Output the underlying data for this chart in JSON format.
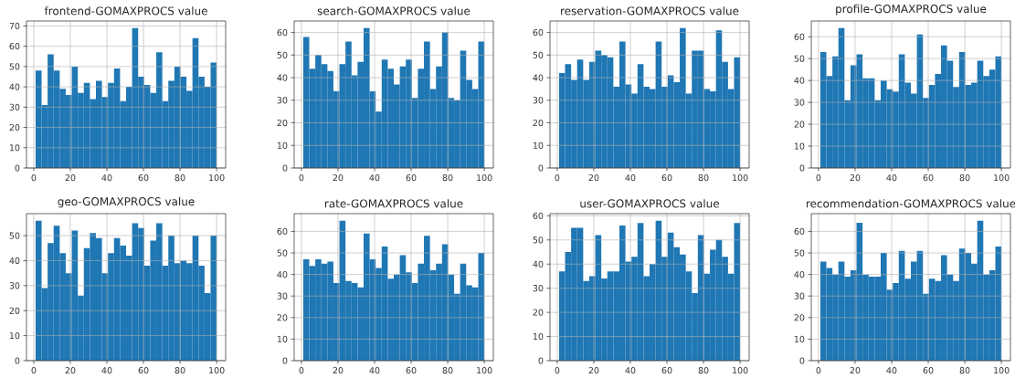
{
  "chart_data": [
    {
      "type": "histogram",
      "title": "frontend-GOMAXPROCS value",
      "color": "#1f77b4",
      "grid": true,
      "bins": [
        1,
        4.3,
        7.6,
        10.9,
        14.2,
        17.5,
        20.8,
        24.1,
        27.4,
        30.7,
        34,
        37.3,
        40.6,
        43.9,
        47.2,
        50.5,
        53.8,
        57.1,
        60.4,
        63.7,
        67,
        70.3,
        73.6,
        76.9,
        80.2,
        83.5,
        86.8,
        90.1,
        93.4,
        96.7,
        100
      ],
      "values": [
        48,
        31,
        56,
        48,
        39,
        36,
        50,
        37,
        42,
        34,
        43,
        35,
        42,
        49,
        33,
        40,
        69,
        45,
        41,
        37,
        57,
        33,
        43,
        50,
        45,
        38,
        64,
        45,
        40,
        52
      ],
      "xlim": [
        -3.95,
        104.95
      ],
      "ylim": [
        0,
        72.45
      ],
      "xticks": [
        0,
        20,
        40,
        60,
        80,
        100
      ],
      "yticks": [
        0,
        10,
        20,
        30,
        40,
        50,
        60,
        70
      ]
    },
    {
      "type": "histogram",
      "title": "search-GOMAXPROCS value",
      "color": "#1f77b4",
      "grid": true,
      "bins": [
        1,
        4.3,
        7.6,
        10.9,
        14.2,
        17.5,
        20.8,
        24.1,
        27.4,
        30.7,
        34,
        37.3,
        40.6,
        43.9,
        47.2,
        50.5,
        53.8,
        57.1,
        60.4,
        63.7,
        67,
        70.3,
        73.6,
        76.9,
        80.2,
        83.5,
        86.8,
        90.1,
        93.4,
        96.7,
        100
      ],
      "values": [
        58,
        44,
        50,
        46,
        43,
        34,
        46,
        56,
        41,
        47,
        62,
        34,
        25,
        48,
        44,
        37,
        45,
        48,
        31,
        44,
        56,
        35,
        45,
        60,
        31,
        30,
        52,
        39,
        35,
        56
      ],
      "xlim": [
        -3.95,
        104.95
      ],
      "ylim": [
        0,
        65.1
      ],
      "xticks": [
        0,
        20,
        40,
        60,
        80,
        100
      ],
      "yticks": [
        0,
        10,
        20,
        30,
        40,
        50,
        60
      ]
    },
    {
      "type": "histogram",
      "title": "reservation-GOMAXPROCS value",
      "color": "#1f77b4",
      "grid": true,
      "bins": [
        1,
        4.3,
        7.6,
        10.9,
        14.2,
        17.5,
        20.8,
        24.1,
        27.4,
        30.7,
        34,
        37.3,
        40.6,
        43.9,
        47.2,
        50.5,
        53.8,
        57.1,
        60.4,
        63.7,
        67,
        70.3,
        73.6,
        76.9,
        80.2,
        83.5,
        86.8,
        90.1,
        93.4,
        96.7,
        100
      ],
      "values": [
        42,
        46,
        39,
        48,
        39,
        47,
        52,
        50,
        49,
        36,
        56,
        37,
        33,
        46,
        36,
        35,
        56,
        36,
        41,
        38,
        62,
        33,
        52,
        52,
        35,
        34,
        61,
        47,
        35,
        49
      ],
      "xlim": [
        -3.95,
        104.95
      ],
      "ylim": [
        0,
        65.1
      ],
      "xticks": [
        0,
        20,
        40,
        60,
        80,
        100
      ],
      "yticks": [
        0,
        10,
        20,
        30,
        40,
        50,
        60
      ]
    },
    {
      "type": "histogram",
      "title": "profile-GOMAXPROCS value",
      "color": "#1f77b4",
      "grid": true,
      "bins": [
        1,
        4.3,
        7.6,
        10.9,
        14.2,
        17.5,
        20.8,
        24.1,
        27.4,
        30.7,
        34,
        37.3,
        40.6,
        43.9,
        47.2,
        50.5,
        53.8,
        57.1,
        60.4,
        63.7,
        67,
        70.3,
        73.6,
        76.9,
        80.2,
        83.5,
        86.8,
        90.1,
        93.4,
        96.7,
        100
      ],
      "values": [
        53,
        42,
        51,
        64,
        31,
        47,
        52,
        41,
        41,
        31,
        40,
        36,
        35,
        52,
        39,
        34,
        61,
        32,
        38,
        43,
        56,
        49,
        37,
        53,
        38,
        39,
        49,
        42,
        45,
        51
      ],
      "xlim": [
        -3.95,
        104.95
      ],
      "ylim": [
        0,
        67.2
      ],
      "xticks": [
        0,
        20,
        40,
        60,
        80,
        100
      ],
      "yticks": [
        0,
        10,
        20,
        30,
        40,
        50,
        60
      ]
    },
    {
      "type": "histogram",
      "title": "geo-GOMAXPROCS value",
      "color": "#1f77b4",
      "grid": true,
      "bins": [
        1,
        4.3,
        7.6,
        10.9,
        14.2,
        17.5,
        20.8,
        24.1,
        27.4,
        30.7,
        34,
        37.3,
        40.6,
        43.9,
        47.2,
        50.5,
        53.8,
        57.1,
        60.4,
        63.7,
        67,
        70.3,
        73.6,
        76.9,
        80.2,
        83.5,
        86.8,
        90.1,
        93.4,
        96.7,
        100
      ],
      "values": [
        56,
        29,
        47,
        54,
        43,
        35,
        52,
        26,
        45,
        51,
        49,
        35,
        43,
        49,
        46,
        42,
        55,
        53,
        38,
        48,
        55,
        38,
        50,
        39,
        40,
        39,
        50,
        38,
        27,
        50
      ],
      "xlim": [
        -3.95,
        104.95
      ],
      "ylim": [
        0,
        58.8
      ],
      "xticks": [
        0,
        20,
        40,
        60,
        80,
        100
      ],
      "yticks": [
        0,
        10,
        20,
        30,
        40,
        50
      ]
    },
    {
      "type": "histogram",
      "title": "rate-GOMAXPROCS value",
      "color": "#1f77b4",
      "grid": true,
      "bins": [
        1,
        4.3,
        7.6,
        10.9,
        14.2,
        17.5,
        20.8,
        24.1,
        27.4,
        30.7,
        34,
        37.3,
        40.6,
        43.9,
        47.2,
        50.5,
        53.8,
        57.1,
        60.4,
        63.7,
        67,
        70.3,
        73.6,
        76.9,
        80.2,
        83.5,
        86.8,
        90.1,
        93.4,
        96.7,
        100
      ],
      "values": [
        47,
        44,
        47,
        45,
        46,
        36,
        65,
        37,
        36,
        34,
        59,
        47,
        43,
        53,
        38,
        40,
        49,
        41,
        36,
        45,
        58,
        42,
        45,
        54,
        40,
        31,
        45,
        35,
        34,
        50
      ],
      "xlim": [
        -3.95,
        104.95
      ],
      "ylim": [
        0,
        68.25
      ],
      "xticks": [
        0,
        20,
        40,
        60,
        80,
        100
      ],
      "yticks": [
        0,
        10,
        20,
        30,
        40,
        50,
        60
      ]
    },
    {
      "type": "histogram",
      "title": "user-GOMAXPROCS value",
      "color": "#1f77b4",
      "grid": true,
      "bins": [
        1,
        4.3,
        7.6,
        10.9,
        14.2,
        17.5,
        20.8,
        24.1,
        27.4,
        30.7,
        34,
        37.3,
        40.6,
        43.9,
        47.2,
        50.5,
        53.8,
        57.1,
        60.4,
        63.7,
        67,
        70.3,
        73.6,
        76.9,
        80.2,
        83.5,
        86.8,
        90.1,
        93.4,
        96.7,
        100
      ],
      "values": [
        37,
        45,
        55,
        55,
        33,
        35,
        52,
        34,
        37,
        37,
        56,
        41,
        43,
        57,
        35,
        40,
        58,
        43,
        53,
        47,
        44,
        37,
        28,
        52,
        36,
        46,
        50,
        43,
        36,
        57
      ],
      "xlim": [
        -3.95,
        104.95
      ],
      "ylim": [
        0,
        60.9
      ],
      "xticks": [
        0,
        20,
        40,
        60,
        80,
        100
      ],
      "yticks": [
        0,
        10,
        20,
        30,
        40,
        50,
        60
      ]
    },
    {
      "type": "histogram",
      "title": "recommendation-GOMAXPROCS value",
      "color": "#1f77b4",
      "grid": true,
      "bins": [
        1,
        4.3,
        7.6,
        10.9,
        14.2,
        17.5,
        20.8,
        24.1,
        27.4,
        30.7,
        34,
        37.3,
        40.6,
        43.9,
        47.2,
        50.5,
        53.8,
        57.1,
        60.4,
        63.7,
        67,
        70.3,
        73.6,
        76.9,
        80.2,
        83.5,
        86.8,
        90.1,
        93.4,
        96.7,
        100
      ],
      "values": [
        46,
        43,
        40,
        46,
        39,
        42,
        64,
        40,
        39,
        39,
        50,
        33,
        36,
        51,
        38,
        46,
        51,
        31,
        38,
        37,
        49,
        40,
        37,
        52,
        50,
        45,
        65,
        40,
        42,
        53
      ],
      "xlim": [
        -3.95,
        104.95
      ],
      "ylim": [
        0,
        68.25
      ],
      "xticks": [
        0,
        20,
        40,
        60,
        80,
        100
      ],
      "yticks": [
        0,
        10,
        20,
        30,
        40,
        50,
        60
      ]
    }
  ]
}
